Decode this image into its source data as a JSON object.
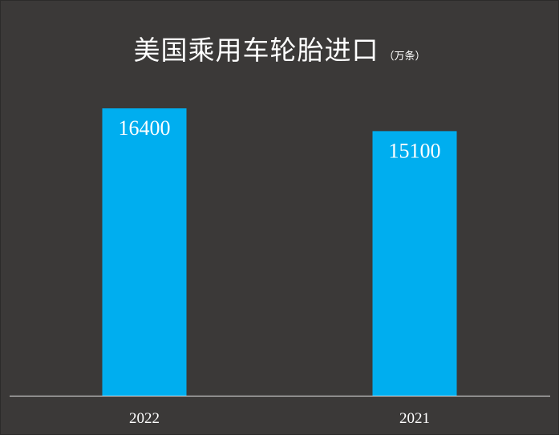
{
  "chart_data": {
    "type": "bar",
    "title": "美国乘用车轮胎进口",
    "unit": "（万条）",
    "categories": [
      "2022",
      "2021"
    ],
    "values": [
      16400,
      15100
    ],
    "data_labels": [
      "16400",
      "15100"
    ],
    "ylim": [
      0,
      16400
    ],
    "xlabel": "",
    "ylabel": "",
    "grid": false,
    "legend": "none",
    "bar_color": "#00aeef",
    "background_color": "#3b3938",
    "text_color": "#ffffff"
  }
}
